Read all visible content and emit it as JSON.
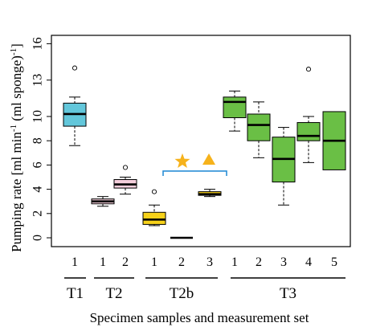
{
  "chart_data": {
    "type": "boxplot",
    "ylabel": "Pumping rate [ml min-1 (ml sponge)-1]",
    "ylabel_parts": [
      "Pumping rate [ml min",
      "-1",
      " (ml sponge)",
      "-1",
      "]"
    ],
    "xlabel": "Specimen samples and measurement set",
    "ylim": [
      -1,
      17
    ],
    "y_ticks": [
      0,
      2,
      4,
      6,
      8,
      10,
      13,
      16
    ],
    "boxes": [
      {
        "group": "T1",
        "label": "1",
        "min": 7.6,
        "q1": 9.2,
        "median": 10.2,
        "q3": 11.1,
        "max": 11.6,
        "outliers": [
          14.0
        ],
        "color": "#63c7db"
      },
      {
        "group": "T2",
        "label": "1",
        "min": 2.6,
        "q1": 2.8,
        "median": 3.0,
        "q3": 3.2,
        "max": 3.4,
        "outliers": [],
        "color": "#f5cfdc"
      },
      {
        "group": "T2",
        "label": "2",
        "min": 3.6,
        "q1": 4.1,
        "median": 4.4,
        "q3": 4.8,
        "max": 5.0,
        "outliers": [
          5.8
        ],
        "color": "#f5cfdc"
      },
      {
        "group": "T2b",
        "label": "1",
        "min": 1.0,
        "q1": 1.1,
        "median": 1.5,
        "q3": 2.1,
        "max": 2.7,
        "outliers": [
          3.8
        ],
        "color": "#f7d21a"
      },
      {
        "group": "T2b",
        "label": "2",
        "min": 0.0,
        "q1": 0.0,
        "median": 0.0,
        "q3": 0.0,
        "max": 0.0,
        "outliers": [],
        "color": "#f7d21a"
      },
      {
        "group": "T2b",
        "label": "3",
        "min": 3.4,
        "q1": 3.5,
        "median": 3.6,
        "q3": 3.8,
        "max": 4.0,
        "outliers": [],
        "color": "#f7d21a"
      },
      {
        "group": "T3",
        "label": "1",
        "min": 8.8,
        "q1": 9.9,
        "median": 11.2,
        "q3": 11.6,
        "max": 12.1,
        "outliers": [],
        "color": "#6abf45"
      },
      {
        "group": "T3",
        "label": "2",
        "min": 6.6,
        "q1": 8.0,
        "median": 9.3,
        "q3": 10.2,
        "max": 11.2,
        "outliers": [],
        "color": "#6abf45"
      },
      {
        "group": "T3",
        "label": "3",
        "min": 2.7,
        "q1": 4.6,
        "median": 6.5,
        "q3": 8.3,
        "max": 9.1,
        "outliers": [],
        "color": "#6abf45"
      },
      {
        "group": "T3",
        "label": "4",
        "min": 6.2,
        "q1": 8.0,
        "median": 8.4,
        "q3": 9.5,
        "max": 10.0,
        "outliers": [
          13.9
        ],
        "color": "#6abf45"
      },
      {
        "group": "T3",
        "label": "5",
        "min": 5.6,
        "q1": 5.6,
        "median": 8.0,
        "q3": 10.4,
        "max": 10.4,
        "outliers": [],
        "color": "#6abf45"
      }
    ],
    "groups": [
      "T1",
      "T2",
      "T2b",
      "T3"
    ],
    "annotation": {
      "symbols": [
        "star",
        "triangle"
      ],
      "symbol_color": "#f6b21b",
      "bracket_color": "#2b8fd6",
      "spans_boxes": [
        4,
        6
      ],
      "y": 5.5
    }
  }
}
